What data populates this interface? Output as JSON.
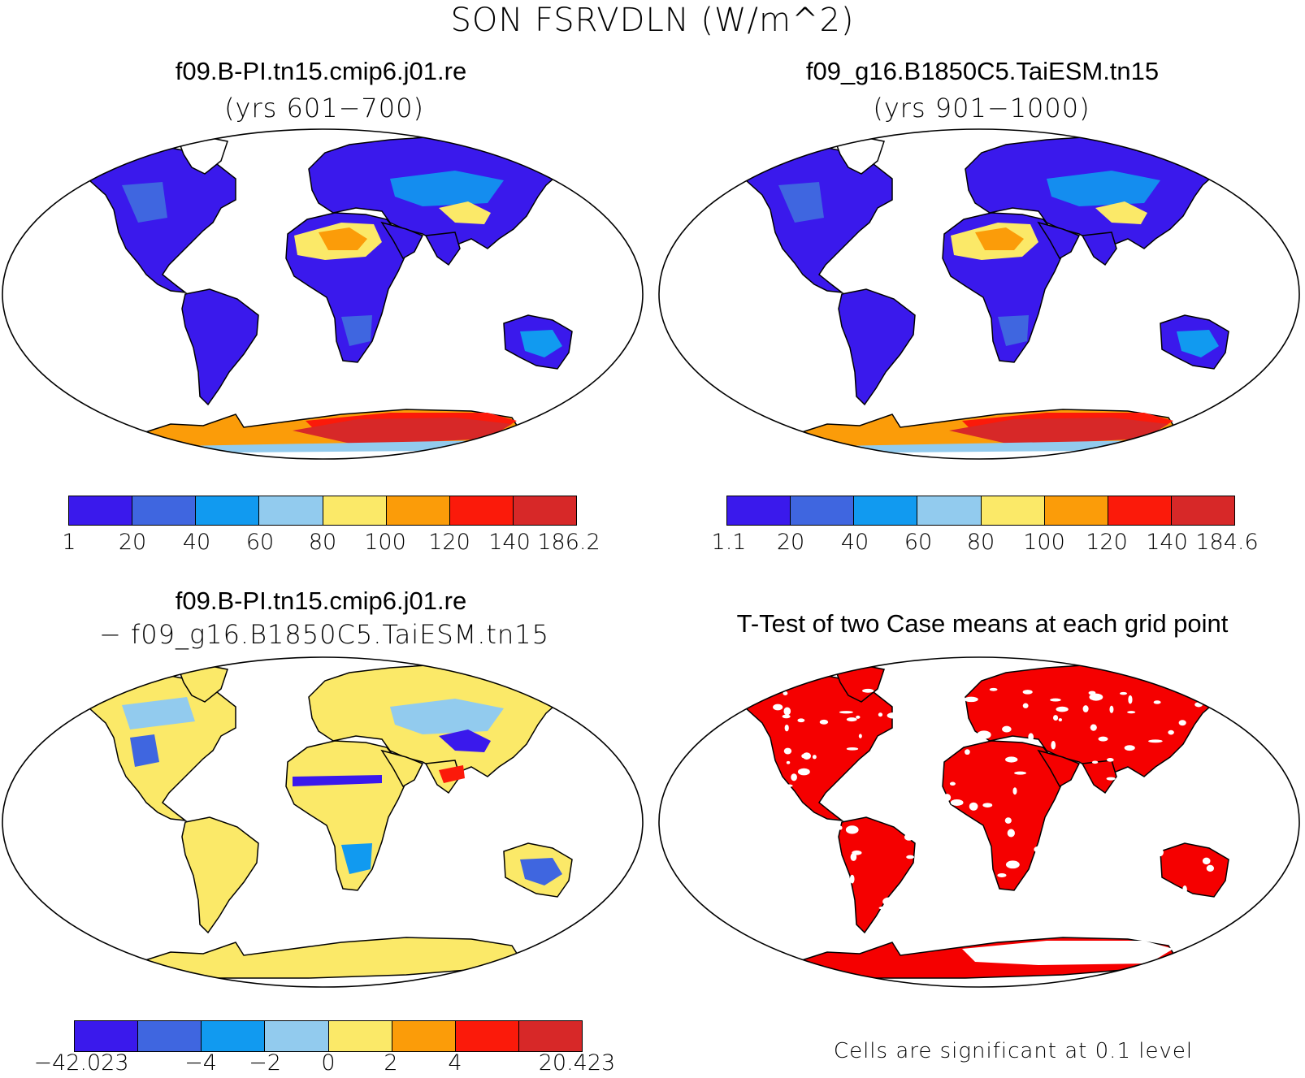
{
  "figure": {
    "title": "SON FSRVDLN (W/m^2)"
  },
  "panels": [
    {
      "title": "f09.B-PI.tn15.cmip6.j01.re",
      "subtitle": "(yrs 601−700)",
      "colorbar": {
        "labels": [
          "1",
          "20",
          "40",
          "60",
          "80",
          "100",
          "120",
          "140",
          "186.2"
        ]
      }
    },
    {
      "title": "f09_g16.B1850C5.TaiESM.tn15",
      "subtitle": "(yrs 901−1000)",
      "colorbar": {
        "labels": [
          "1.1",
          "20",
          "40",
          "60",
          "80",
          "100",
          "120",
          "140",
          "184.6"
        ]
      }
    },
    {
      "title": "f09.B-PI.tn15.cmip6.j01.re",
      "subtitle": "− f09_g16.B1850C5.TaiESM.tn15",
      "colorbar": {
        "labels": [
          "−42.023",
          "−4",
          "−2",
          "0",
          "2",
          "4",
          "20.423"
        ]
      }
    },
    {
      "title": "T-Test of two Case means at each grid point",
      "note": "Cells are significant at 0.1 level"
    }
  ],
  "colors": {
    "levels": [
      "#3a19ec",
      "#3f66e0",
      "#119af0",
      "#92cbee",
      "#fbe968",
      "#fb9c09",
      "#fb1a0a",
      "#d72828"
    ],
    "significant": "#f50000",
    "coast": "#000000"
  }
}
